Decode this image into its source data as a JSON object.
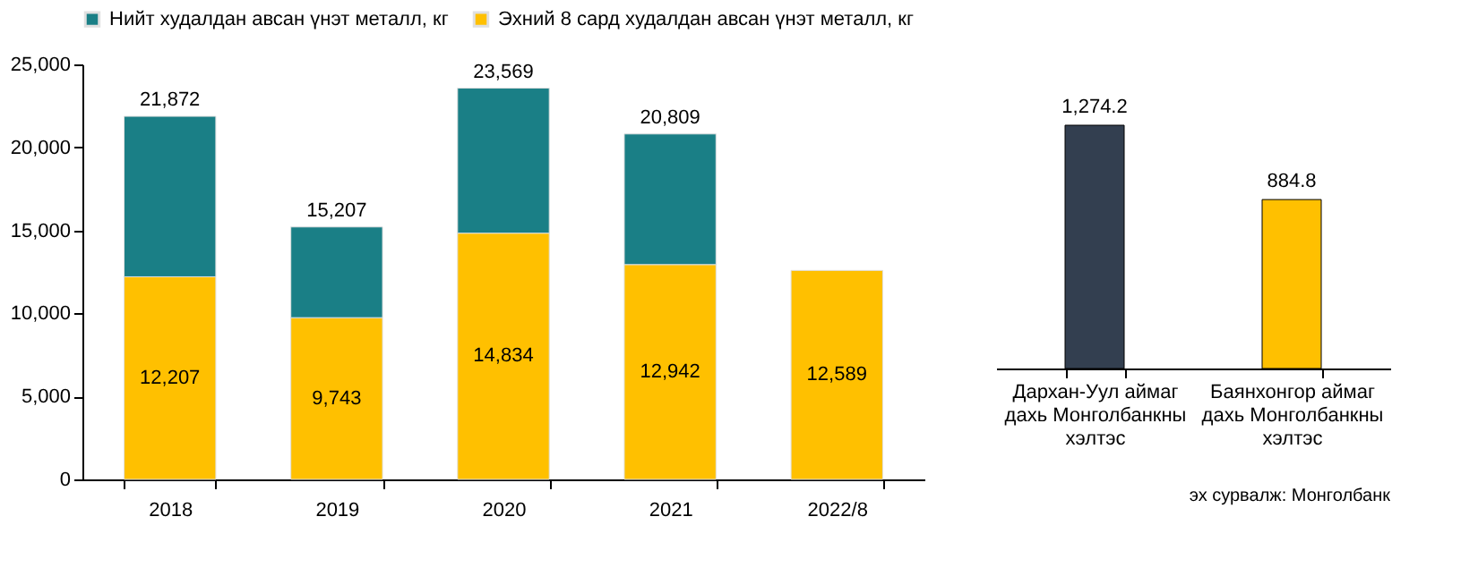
{
  "chart_data": [
    {
      "type": "bar",
      "stacked": true,
      "categories": [
        "2018",
        "2019",
        "2020",
        "2021",
        "2022/8"
      ],
      "series": [
        {
          "name": "Эхний 8 сард худалдан авсан үнэт металл, кг",
          "color": "#ffc000",
          "values": [
            12207,
            9743,
            14834,
            12942,
            12589
          ],
          "value_labels": [
            "12,207",
            "9,743",
            "14,834",
            "12,942",
            "12,589"
          ]
        },
        {
          "name": "Нийт худалдан авсан үнэт металл, кг",
          "color": "#1a7f86",
          "values": [
            9665,
            5464,
            8735,
            7867,
            null
          ]
        }
      ],
      "totals": [
        "21,872",
        "15,207",
        "23,569",
        "20,809",
        null
      ],
      "ylim": [
        0,
        25000
      ],
      "yticks": [
        {
          "value": 0,
          "label": "0"
        },
        {
          "value": 5000,
          "label": "5,000"
        },
        {
          "value": 10000,
          "label": "10,000"
        },
        {
          "value": 15000,
          "label": "15,000"
        },
        {
          "value": 20000,
          "label": "20,000"
        },
        {
          "value": 25000,
          "label": "25,000"
        }
      ],
      "grid": false,
      "legend": "top"
    },
    {
      "type": "bar",
      "categories": [
        "Дархан-Уул аймаг\nдахь Монголбанкны\nхэлтэс",
        "Баянхонгор аймаг\nдахь Монголбанкны\nхэлтэс"
      ],
      "values": [
        1274.2,
        884.8
      ],
      "colors": [
        "#333f50",
        "#ffc000"
      ],
      "value_labels": [
        "1,274.2",
        "884.8"
      ],
      "annotations": [
        "эх сурвалж: Монголбанк"
      ]
    }
  ]
}
